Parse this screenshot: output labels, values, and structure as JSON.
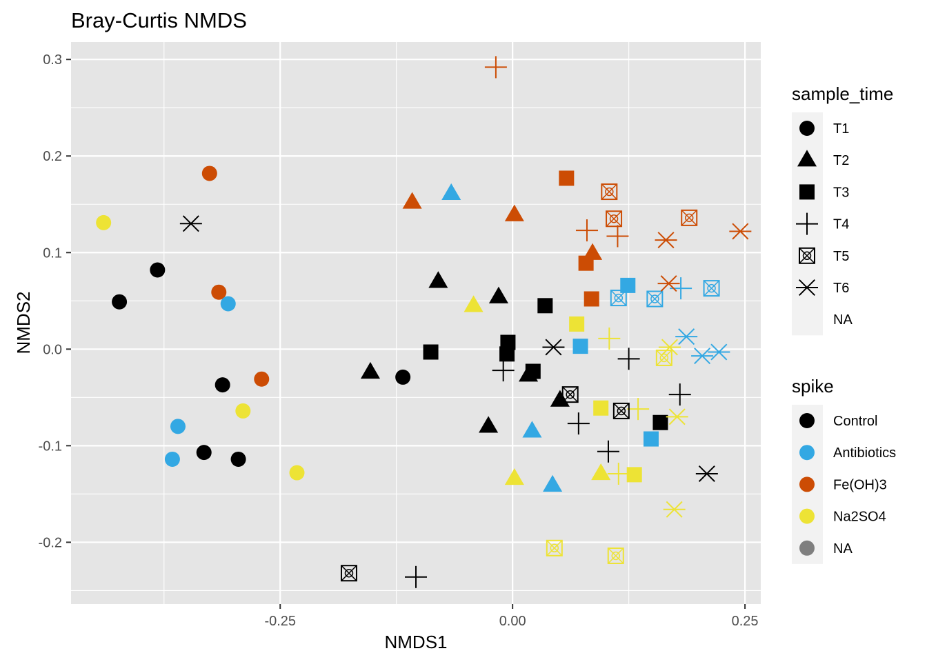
{
  "chart_data": {
    "type": "scatter",
    "title": "Bray-Curtis NMDS",
    "xlabel": "NMDS1",
    "ylabel": "NMDS2",
    "xlim": [
      -0.475,
      0.267
    ],
    "ylim": [
      -0.264,
      0.318
    ],
    "x_ticks": [
      -0.25,
      0.0,
      0.25
    ],
    "x_tick_labels": [
      "-0.25",
      "0.00",
      "0.25"
    ],
    "y_ticks": [
      -0.2,
      -0.1,
      0.0,
      0.1,
      0.2,
      0.3
    ],
    "y_tick_labels": [
      "-0.2",
      "-0.1",
      "0.0",
      "0.1",
      "0.2",
      "0.3"
    ],
    "grid": true,
    "legend_position": "right",
    "colors": {
      "Control": "#000000",
      "Antibiotics": "#33a8e3",
      "Fe(OH)3": "#cc4c04",
      "Na2SO4": "#ede335",
      "NA": "#7f7f7f",
      "panel_bg": "#e5e5e5",
      "grid": "#ffffff"
    },
    "legends": [
      {
        "title": "sample_time",
        "items": [
          {
            "label": "T1",
            "shape": "circle"
          },
          {
            "label": "T2",
            "shape": "triangle"
          },
          {
            "label": "T3",
            "shape": "square"
          },
          {
            "label": "T4",
            "shape": "plus"
          },
          {
            "label": "T5",
            "shape": "boxcross"
          },
          {
            "label": "T6",
            "shape": "asterisk"
          },
          {
            "label": "NA",
            "shape": "none"
          }
        ]
      },
      {
        "title": "spike",
        "items": [
          {
            "label": "Control",
            "color": "#000000"
          },
          {
            "label": "Antibiotics",
            "color": "#33a8e3"
          },
          {
            "label": "Fe(OH)3",
            "color": "#cc4c04"
          },
          {
            "label": "Na2SO4",
            "color": "#ede335"
          },
          {
            "label": "NA",
            "color": "#7f7f7f"
          }
        ]
      }
    ],
    "points": [
      {
        "x": -0.423,
        "y": 0.049,
        "time": "T1",
        "spike": "Control"
      },
      {
        "x": -0.382,
        "y": 0.082,
        "time": "T1",
        "spike": "Control"
      },
      {
        "x": -0.312,
        "y": -0.037,
        "time": "T1",
        "spike": "Control"
      },
      {
        "x": -0.332,
        "y": -0.107,
        "time": "T1",
        "spike": "Control"
      },
      {
        "x": -0.295,
        "y": -0.114,
        "time": "T1",
        "spike": "Control"
      },
      {
        "x": -0.118,
        "y": -0.029,
        "time": "T1",
        "spike": "Control"
      },
      {
        "x": -0.44,
        "y": 0.131,
        "time": "T1",
        "spike": "Na2SO4"
      },
      {
        "x": -0.29,
        "y": -0.064,
        "time": "T1",
        "spike": "Na2SO4"
      },
      {
        "x": -0.232,
        "y": -0.128,
        "time": "T1",
        "spike": "Na2SO4"
      },
      {
        "x": -0.326,
        "y": 0.182,
        "time": "T1",
        "spike": "Fe(OH)3"
      },
      {
        "x": -0.316,
        "y": 0.059,
        "time": "T1",
        "spike": "Fe(OH)3"
      },
      {
        "x": -0.27,
        "y": -0.031,
        "time": "T1",
        "spike": "Fe(OH)3"
      },
      {
        "x": -0.306,
        "y": 0.047,
        "time": "T1",
        "spike": "Antibiotics"
      },
      {
        "x": -0.36,
        "y": -0.08,
        "time": "T1",
        "spike": "Antibiotics"
      },
      {
        "x": -0.366,
        "y": -0.114,
        "time": "T1",
        "spike": "Antibiotics"
      },
      {
        "x": -0.08,
        "y": 0.07,
        "time": "T2",
        "spike": "Control"
      },
      {
        "x": -0.015,
        "y": 0.054,
        "time": "T2",
        "spike": "Control"
      },
      {
        "x": -0.153,
        "y": -0.024,
        "time": "T2",
        "spike": "Control"
      },
      {
        "x": -0.026,
        "y": -0.08,
        "time": "T2",
        "spike": "Control"
      },
      {
        "x": 0.017,
        "y": -0.027,
        "time": "T2",
        "spike": "Control"
      },
      {
        "x": 0.051,
        "y": -0.053,
        "time": "T2",
        "spike": "Control"
      },
      {
        "x": -0.108,
        "y": 0.152,
        "time": "T2",
        "spike": "Fe(OH)3"
      },
      {
        "x": 0.002,
        "y": 0.139,
        "time": "T2",
        "spike": "Fe(OH)3"
      },
      {
        "x": 0.086,
        "y": 0.099,
        "time": "T2",
        "spike": "Fe(OH)3"
      },
      {
        "x": -0.066,
        "y": 0.161,
        "time": "T2",
        "spike": "Antibiotics"
      },
      {
        "x": 0.021,
        "y": -0.085,
        "time": "T2",
        "spike": "Antibiotics"
      },
      {
        "x": 0.043,
        "y": -0.141,
        "time": "T2",
        "spike": "Antibiotics"
      },
      {
        "x": -0.042,
        "y": 0.045,
        "time": "T2",
        "spike": "Na2SO4"
      },
      {
        "x": 0.002,
        "y": -0.134,
        "time": "T2",
        "spike": "Na2SO4"
      },
      {
        "x": 0.095,
        "y": -0.129,
        "time": "T2",
        "spike": "Na2SO4"
      },
      {
        "x": -0.088,
        "y": -0.003,
        "time": "T3",
        "spike": "Control"
      },
      {
        "x": -0.005,
        "y": 0.007,
        "time": "T3",
        "spike": "Control"
      },
      {
        "x": -0.006,
        "y": -0.005,
        "time": "T3",
        "spike": "Control"
      },
      {
        "x": 0.022,
        "y": -0.023,
        "time": "T3",
        "spike": "Control"
      },
      {
        "x": 0.035,
        "y": 0.045,
        "time": "T3",
        "spike": "Control"
      },
      {
        "x": 0.159,
        "y": -0.076,
        "time": "T3",
        "spike": "Control"
      },
      {
        "x": 0.058,
        "y": 0.177,
        "time": "T3",
        "spike": "Fe(OH)3"
      },
      {
        "x": 0.079,
        "y": 0.089,
        "time": "T3",
        "spike": "Fe(OH)3"
      },
      {
        "x": 0.085,
        "y": 0.052,
        "time": "T3",
        "spike": "Fe(OH)3"
      },
      {
        "x": 0.069,
        "y": 0.026,
        "time": "T3",
        "spike": "Na2SO4"
      },
      {
        "x": 0.095,
        "y": -0.061,
        "time": "T3",
        "spike": "Na2SO4"
      },
      {
        "x": 0.131,
        "y": -0.13,
        "time": "T3",
        "spike": "Na2SO4"
      },
      {
        "x": 0.073,
        "y": 0.003,
        "time": "T3",
        "spike": "Antibiotics"
      },
      {
        "x": 0.124,
        "y": 0.066,
        "time": "T3",
        "spike": "Antibiotics"
      },
      {
        "x": 0.149,
        "y": -0.093,
        "time": "T3",
        "spike": "Antibiotics"
      },
      {
        "x": -0.018,
        "y": 0.292,
        "time": "T4",
        "spike": "Fe(OH)3"
      },
      {
        "x": 0.08,
        "y": 0.123,
        "time": "T4",
        "spike": "Fe(OH)3"
      },
      {
        "x": 0.113,
        "y": 0.117,
        "time": "T4",
        "spike": "Fe(OH)3"
      },
      {
        "x": -0.01,
        "y": -0.022,
        "time": "T4",
        "spike": "Control"
      },
      {
        "x": 0.125,
        "y": -0.01,
        "time": "T4",
        "spike": "Control"
      },
      {
        "x": 0.18,
        "y": -0.047,
        "time": "T4",
        "spike": "Control"
      },
      {
        "x": 0.071,
        "y": -0.077,
        "time": "T4",
        "spike": "Control"
      },
      {
        "x": 0.103,
        "y": -0.106,
        "time": "T4",
        "spike": "Control"
      },
      {
        "x": -0.104,
        "y": -0.236,
        "time": "T4",
        "spike": "Control"
      },
      {
        "x": 0.104,
        "y": 0.011,
        "time": "T4",
        "spike": "Na2SO4"
      },
      {
        "x": 0.135,
        "y": -0.062,
        "time": "T4",
        "spike": "Na2SO4"
      },
      {
        "x": 0.114,
        "y": -0.129,
        "time": "T4",
        "spike": "Na2SO4"
      },
      {
        "x": 0.181,
        "y": 0.063,
        "time": "T4",
        "spike": "Antibiotics"
      },
      {
        "x": 0.104,
        "y": 0.163,
        "time": "T5",
        "spike": "Fe(OH)3"
      },
      {
        "x": 0.109,
        "y": 0.135,
        "time": "T5",
        "spike": "Fe(OH)3"
      },
      {
        "x": 0.19,
        "y": 0.136,
        "time": "T5",
        "spike": "Fe(OH)3"
      },
      {
        "x": 0.114,
        "y": 0.053,
        "time": "T5",
        "spike": "Antibiotics"
      },
      {
        "x": 0.153,
        "y": 0.052,
        "time": "T5",
        "spike": "Antibiotics"
      },
      {
        "x": 0.214,
        "y": 0.063,
        "time": "T5",
        "spike": "Antibiotics"
      },
      {
        "x": 0.163,
        "y": -0.009,
        "time": "T5",
        "spike": "Na2SO4"
      },
      {
        "x": 0.045,
        "y": -0.206,
        "time": "T5",
        "spike": "Na2SO4"
      },
      {
        "x": 0.111,
        "y": -0.214,
        "time": "T5",
        "spike": "Na2SO4"
      },
      {
        "x": 0.062,
        "y": -0.047,
        "time": "T5",
        "spike": "Control"
      },
      {
        "x": 0.117,
        "y": -0.064,
        "time": "T5",
        "spike": "Control"
      },
      {
        "x": -0.176,
        "y": -0.232,
        "time": "T5",
        "spike": "Control"
      },
      {
        "x": -0.346,
        "y": 0.13,
        "time": "T6",
        "spike": "Control"
      },
      {
        "x": 0.044,
        "y": 0.002,
        "time": "T6",
        "spike": "Control"
      },
      {
        "x": 0.209,
        "y": -0.129,
        "time": "T6",
        "spike": "Control"
      },
      {
        "x": 0.165,
        "y": 0.113,
        "time": "T6",
        "spike": "Fe(OH)3"
      },
      {
        "x": 0.168,
        "y": 0.068,
        "time": "T6",
        "spike": "Fe(OH)3"
      },
      {
        "x": 0.245,
        "y": 0.122,
        "time": "T6",
        "spike": "Fe(OH)3"
      },
      {
        "x": 0.187,
        "y": 0.013,
        "time": "T6",
        "spike": "Antibiotics"
      },
      {
        "x": 0.204,
        "y": -0.007,
        "time": "T6",
        "spike": "Antibiotics"
      },
      {
        "x": 0.222,
        "y": -0.003,
        "time": "T6",
        "spike": "Antibiotics"
      },
      {
        "x": 0.169,
        "y": 0.002,
        "time": "T6",
        "spike": "Na2SO4"
      },
      {
        "x": 0.177,
        "y": -0.07,
        "time": "T6",
        "spike": "Na2SO4"
      },
      {
        "x": 0.174,
        "y": -0.166,
        "time": "T6",
        "spike": "Na2SO4"
      }
    ]
  }
}
